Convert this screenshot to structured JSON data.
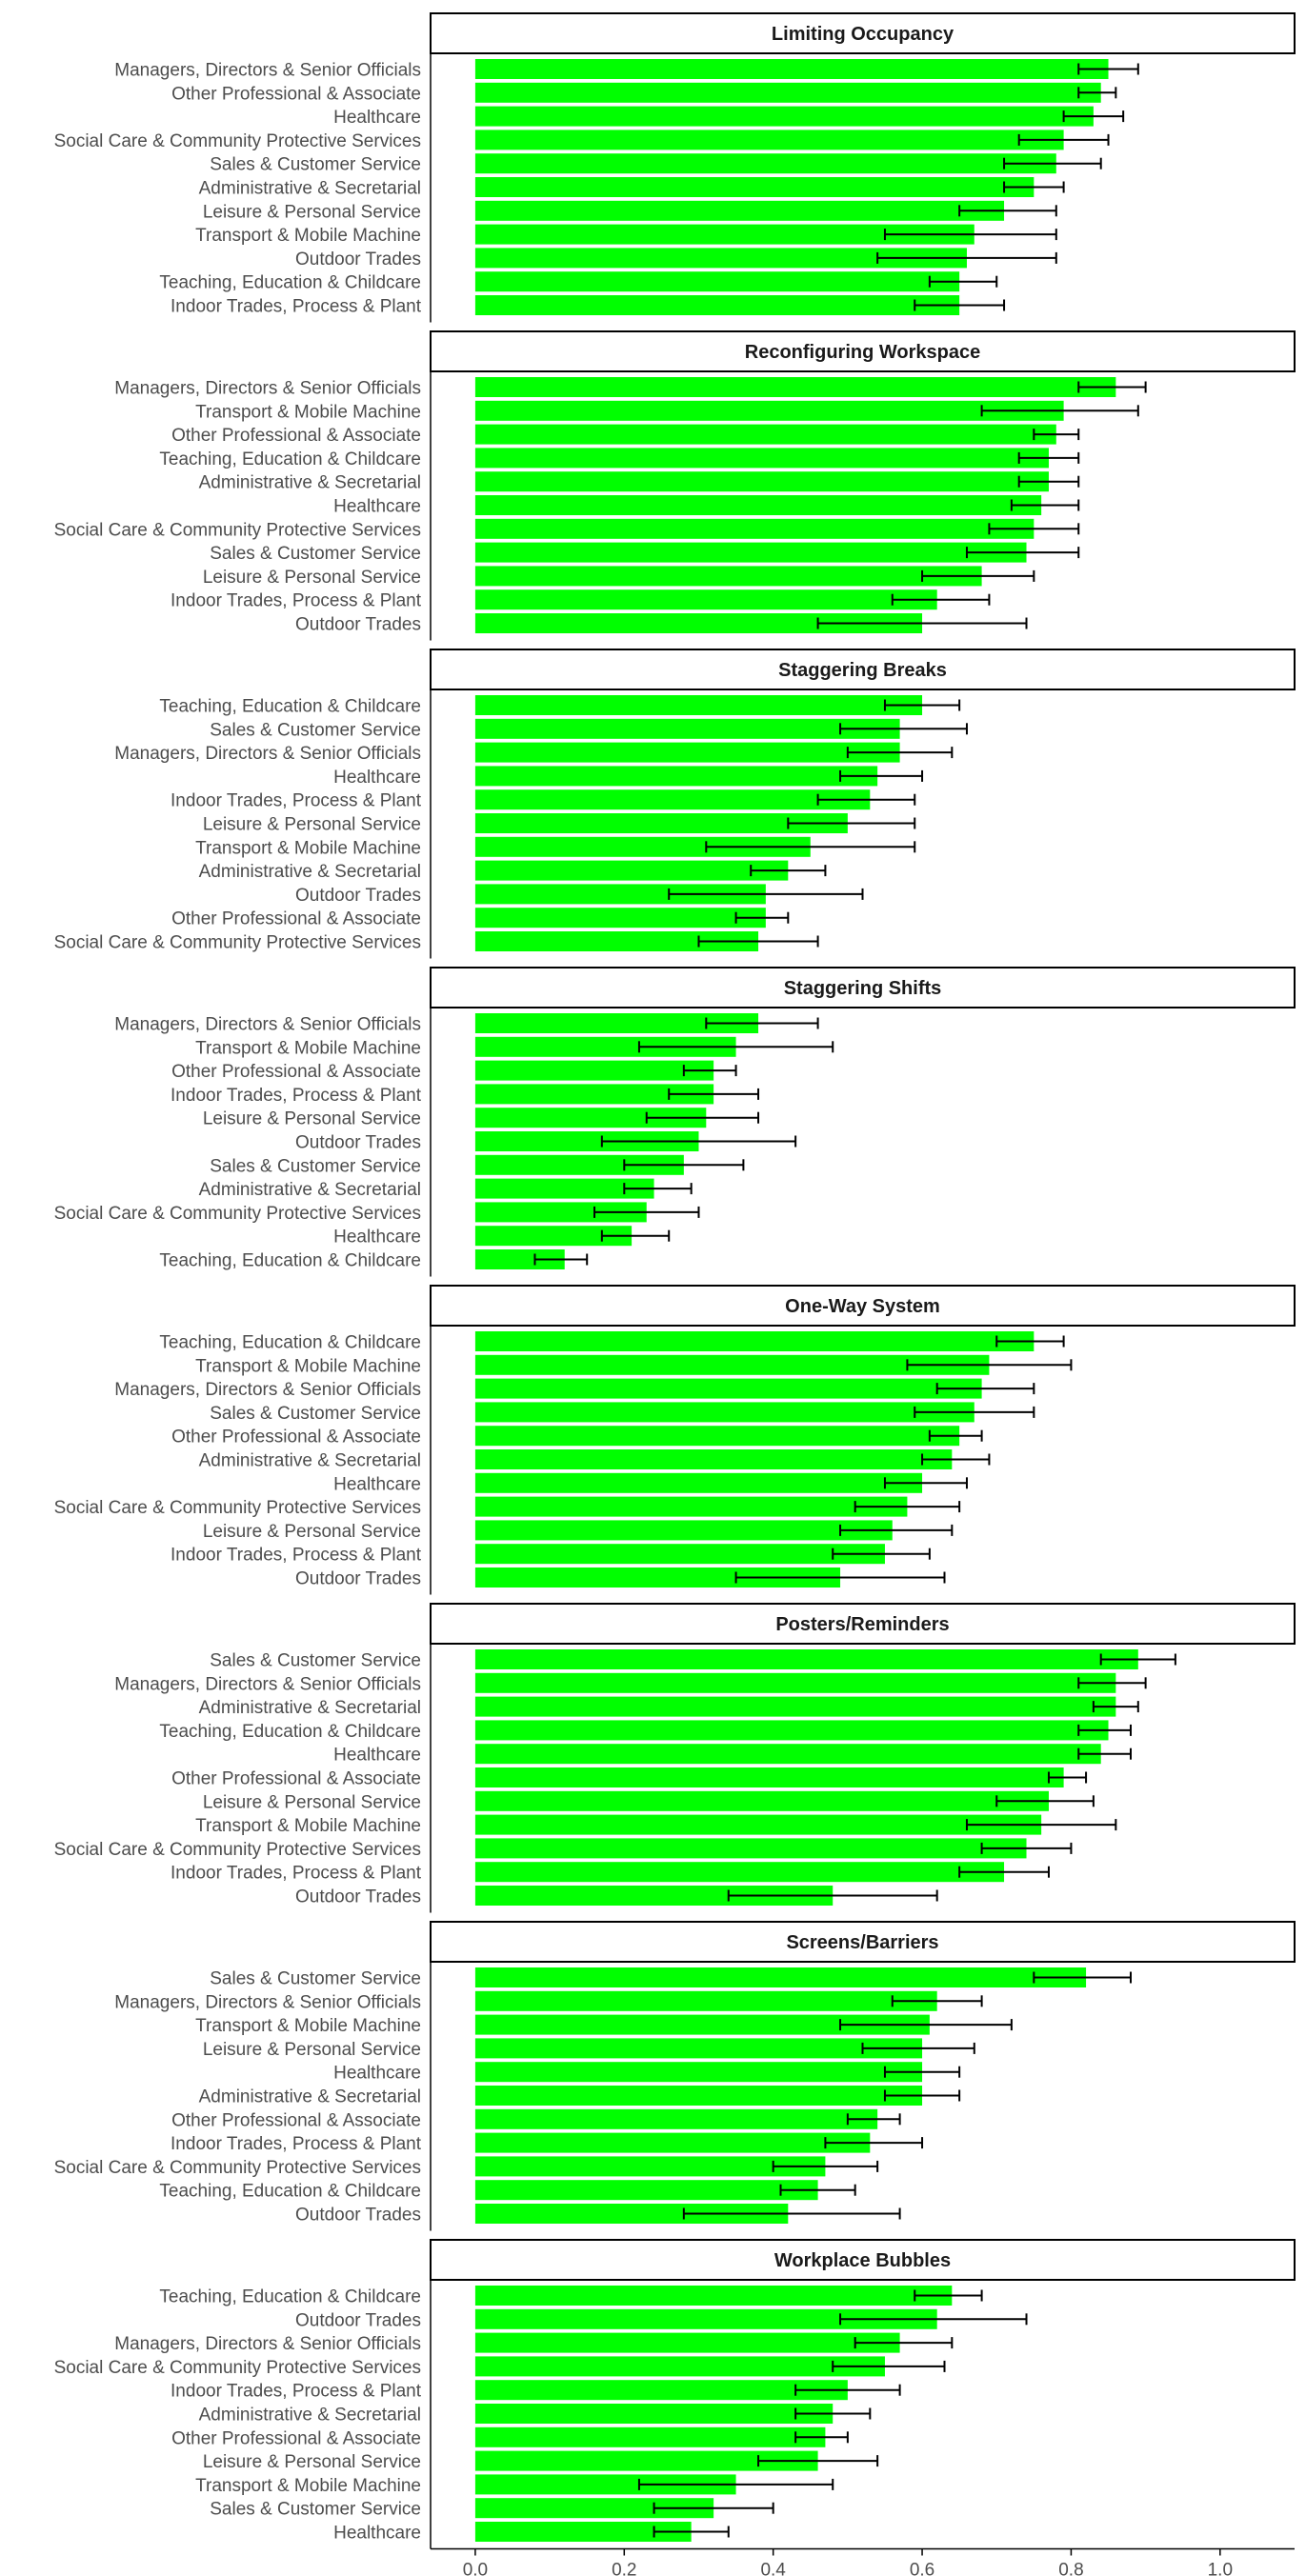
{
  "colors": {
    "bar": "#00ff00",
    "error": "#000000",
    "strip_border": "#000000",
    "axis": "#000000"
  },
  "chart_data": {
    "type": "bar",
    "orientation": "horizontal",
    "facets": [
      {
        "title": "Limiting Occupancy",
        "categories": [
          "Managers, Directors & Senior Officials",
          "Other Professional & Associate",
          "Healthcare",
          "Social Care & Community Protective Services",
          "Sales & Customer Service",
          "Administrative & Secretarial",
          "Leisure & Personal Service",
          "Transport & Mobile Machine",
          "Outdoor Trades",
          "Teaching, Education & Childcare",
          "Indoor Trades, Process & Plant"
        ],
        "values": [
          0.85,
          0.84,
          0.83,
          0.79,
          0.78,
          0.75,
          0.71,
          0.67,
          0.66,
          0.65,
          0.65
        ],
        "lower": [
          0.81,
          0.81,
          0.79,
          0.73,
          0.71,
          0.71,
          0.65,
          0.55,
          0.54,
          0.61,
          0.59
        ],
        "upper": [
          0.89,
          0.86,
          0.87,
          0.85,
          0.84,
          0.79,
          0.78,
          0.78,
          0.78,
          0.7,
          0.71
        ]
      },
      {
        "title": "Reconfiguring Workspace",
        "categories": [
          "Managers, Directors & Senior Officials",
          "Transport & Mobile Machine",
          "Other Professional & Associate",
          "Teaching, Education & Childcare",
          "Administrative & Secretarial",
          "Healthcare",
          "Social Care & Community Protective Services",
          "Sales & Customer Service",
          "Leisure & Personal Service",
          "Indoor Trades, Process & Plant",
          "Outdoor Trades"
        ],
        "values": [
          0.86,
          0.79,
          0.78,
          0.77,
          0.77,
          0.76,
          0.75,
          0.74,
          0.68,
          0.62,
          0.6
        ],
        "lower": [
          0.81,
          0.68,
          0.75,
          0.73,
          0.73,
          0.72,
          0.69,
          0.66,
          0.6,
          0.56,
          0.46
        ],
        "upper": [
          0.9,
          0.89,
          0.81,
          0.81,
          0.81,
          0.81,
          0.81,
          0.81,
          0.75,
          0.69,
          0.74
        ]
      },
      {
        "title": "Staggering Breaks",
        "categories": [
          "Teaching, Education & Childcare",
          "Sales & Customer Service",
          "Managers, Directors & Senior Officials",
          "Healthcare",
          "Indoor Trades, Process & Plant",
          "Leisure & Personal Service",
          "Transport & Mobile Machine",
          "Administrative & Secretarial",
          "Outdoor Trades",
          "Other Professional & Associate",
          "Social Care & Community Protective Services"
        ],
        "values": [
          0.6,
          0.57,
          0.57,
          0.54,
          0.53,
          0.5,
          0.45,
          0.42,
          0.39,
          0.39,
          0.38
        ],
        "lower": [
          0.55,
          0.49,
          0.5,
          0.49,
          0.46,
          0.42,
          0.31,
          0.37,
          0.26,
          0.35,
          0.3
        ],
        "upper": [
          0.65,
          0.66,
          0.64,
          0.6,
          0.59,
          0.59,
          0.59,
          0.47,
          0.52,
          0.42,
          0.46
        ]
      },
      {
        "title": "Staggering Shifts",
        "categories": [
          "Managers, Directors & Senior Officials",
          "Transport & Mobile Machine",
          "Other Professional & Associate",
          "Indoor Trades, Process & Plant",
          "Leisure & Personal Service",
          "Outdoor Trades",
          "Sales & Customer Service",
          "Administrative & Secretarial",
          "Social Care & Community Protective Services",
          "Healthcare",
          "Teaching, Education & Childcare"
        ],
        "values": [
          0.38,
          0.35,
          0.32,
          0.32,
          0.31,
          0.3,
          0.28,
          0.24,
          0.23,
          0.21,
          0.12
        ],
        "lower": [
          0.31,
          0.22,
          0.28,
          0.26,
          0.23,
          0.17,
          0.2,
          0.2,
          0.16,
          0.17,
          0.08
        ],
        "upper": [
          0.46,
          0.48,
          0.35,
          0.38,
          0.38,
          0.43,
          0.36,
          0.29,
          0.3,
          0.26,
          0.15
        ]
      },
      {
        "title": "One-Way System",
        "categories": [
          "Teaching, Education & Childcare",
          "Transport & Mobile Machine",
          "Managers, Directors & Senior Officials",
          "Sales & Customer Service",
          "Other Professional & Associate",
          "Administrative & Secretarial",
          "Healthcare",
          "Social Care & Community Protective Services",
          "Leisure & Personal Service",
          "Indoor Trades, Process & Plant",
          "Outdoor Trades"
        ],
        "values": [
          0.75,
          0.69,
          0.68,
          0.67,
          0.65,
          0.64,
          0.6,
          0.58,
          0.56,
          0.55,
          0.49
        ],
        "lower": [
          0.7,
          0.58,
          0.62,
          0.59,
          0.61,
          0.6,
          0.55,
          0.51,
          0.49,
          0.48,
          0.35
        ],
        "upper": [
          0.79,
          0.8,
          0.75,
          0.75,
          0.68,
          0.69,
          0.66,
          0.65,
          0.64,
          0.61,
          0.63
        ]
      },
      {
        "title": "Posters/Reminders",
        "categories": [
          "Sales & Customer Service",
          "Managers, Directors & Senior Officials",
          "Administrative & Secretarial",
          "Teaching, Education & Childcare",
          "Healthcare",
          "Other Professional & Associate",
          "Leisure & Personal Service",
          "Transport & Mobile Machine",
          "Social Care & Community Protective Services",
          "Indoor Trades, Process & Plant",
          "Outdoor Trades"
        ],
        "values": [
          0.89,
          0.86,
          0.86,
          0.85,
          0.84,
          0.79,
          0.77,
          0.76,
          0.74,
          0.71,
          0.48
        ],
        "lower": [
          0.84,
          0.81,
          0.83,
          0.81,
          0.81,
          0.77,
          0.7,
          0.66,
          0.68,
          0.65,
          0.34
        ],
        "upper": [
          0.94,
          0.9,
          0.89,
          0.88,
          0.88,
          0.82,
          0.83,
          0.86,
          0.8,
          0.77,
          0.62
        ]
      },
      {
        "title": "Screens/Barriers",
        "categories": [
          "Sales & Customer Service",
          "Managers, Directors & Senior Officials",
          "Transport & Mobile Machine",
          "Leisure & Personal Service",
          "Healthcare",
          "Administrative & Secretarial",
          "Other Professional & Associate",
          "Indoor Trades, Process & Plant",
          "Social Care & Community Protective Services",
          "Teaching, Education & Childcare",
          "Outdoor Trades"
        ],
        "values": [
          0.82,
          0.62,
          0.61,
          0.6,
          0.6,
          0.6,
          0.54,
          0.53,
          0.47,
          0.46,
          0.42
        ],
        "lower": [
          0.75,
          0.56,
          0.49,
          0.52,
          0.55,
          0.55,
          0.5,
          0.47,
          0.4,
          0.41,
          0.28
        ],
        "upper": [
          0.88,
          0.68,
          0.72,
          0.67,
          0.65,
          0.65,
          0.57,
          0.6,
          0.54,
          0.51,
          0.57
        ]
      },
      {
        "title": "Workplace Bubbles",
        "categories": [
          "Teaching, Education & Childcare",
          "Outdoor Trades",
          "Managers, Directors & Senior Officials",
          "Social Care & Community Protective Services",
          "Indoor Trades, Process & Plant",
          "Administrative & Secretarial",
          "Other Professional & Associate",
          "Leisure & Personal Service",
          "Transport & Mobile Machine",
          "Sales & Customer Service",
          "Healthcare"
        ],
        "values": [
          0.64,
          0.62,
          0.57,
          0.55,
          0.5,
          0.48,
          0.47,
          0.46,
          0.35,
          0.32,
          0.29
        ],
        "lower": [
          0.59,
          0.49,
          0.51,
          0.48,
          0.43,
          0.43,
          0.43,
          0.38,
          0.22,
          0.24,
          0.24
        ],
        "upper": [
          0.68,
          0.74,
          0.64,
          0.63,
          0.57,
          0.53,
          0.5,
          0.54,
          0.48,
          0.4,
          0.34
        ]
      }
    ],
    "x_axis": {
      "min": -0.06,
      "max": 1.1,
      "ticks": [
        0.0,
        0.2,
        0.4,
        0.6,
        0.8,
        1.0
      ],
      "tick_labels": [
        "0.0",
        "0.2",
        "0.4",
        "0.6",
        "0.8",
        "1.0"
      ]
    },
    "grid": false
  }
}
